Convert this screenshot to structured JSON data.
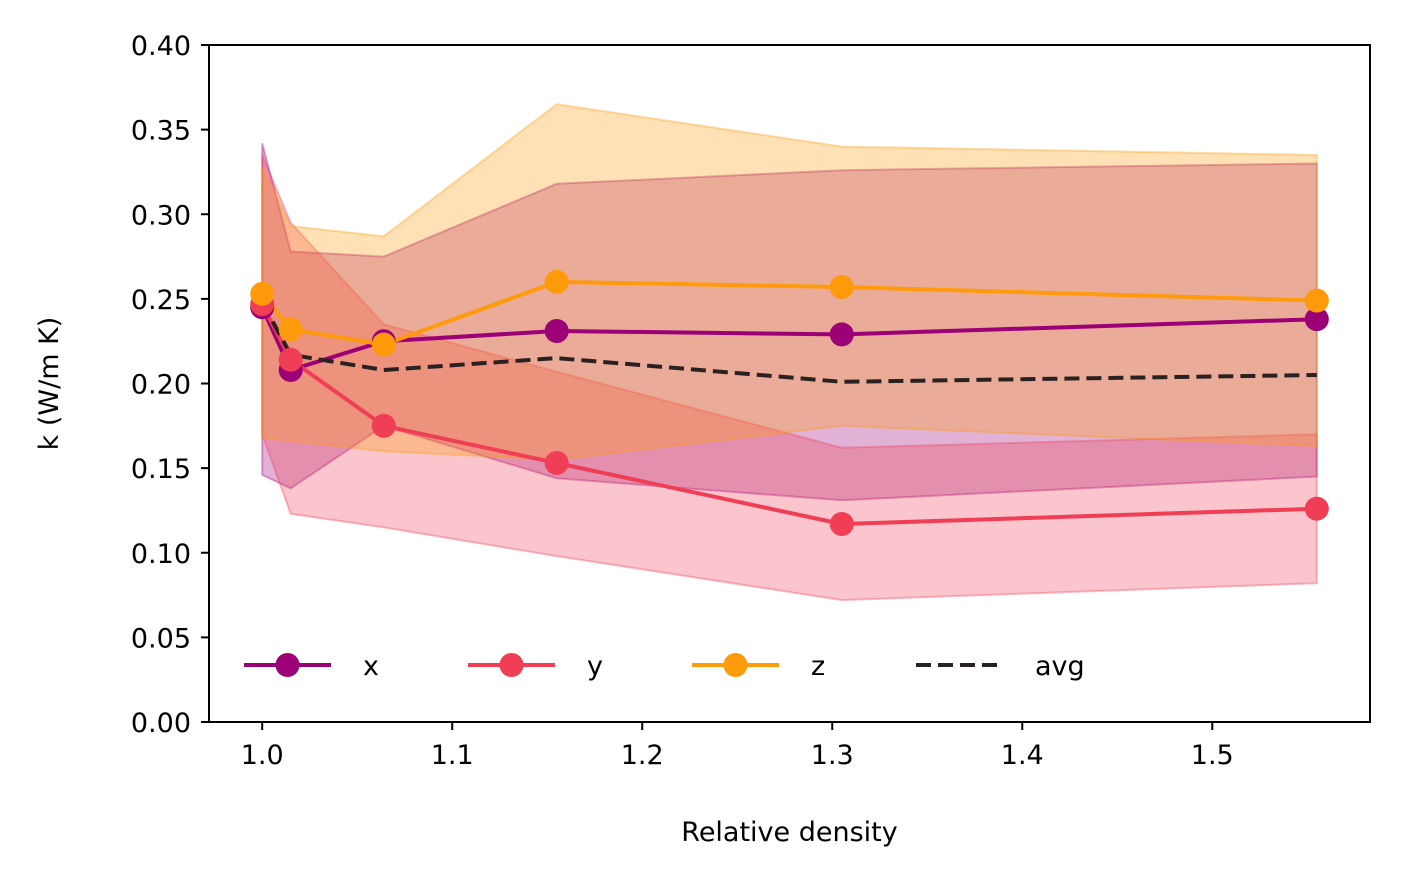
{
  "chart_data": {
    "type": "line",
    "xlabel": "Relative density",
    "ylabel": "k (W/m K)",
    "xlim": [
      0.972,
      1.583
    ],
    "ylim": [
      0.0,
      0.4
    ],
    "xticks": [
      1.0,
      1.1,
      1.2,
      1.3,
      1.4,
      1.5
    ],
    "xtick_labels": [
      "1.0",
      "1.1",
      "1.2",
      "1.3",
      "1.4",
      "1.5"
    ],
    "yticks": [
      0.0,
      0.05,
      0.1,
      0.15,
      0.2,
      0.25,
      0.3,
      0.35,
      0.4
    ],
    "ytick_labels": [
      "0.00",
      "0.05",
      "0.10",
      "0.15",
      "0.20",
      "0.25",
      "0.30",
      "0.35",
      "0.40"
    ],
    "grid": false,
    "legend": {
      "placement": "lower-left",
      "columns": 4
    },
    "x": [
      1.0,
      1.015,
      1.064,
      1.155,
      1.305,
      1.555
    ],
    "series": [
      {
        "name": "x",
        "color": "#9b0077",
        "marker": "circle",
        "linestyle": "solid",
        "values": [
          0.245,
          0.208,
          0.225,
          0.231,
          0.229,
          0.238
        ],
        "band": {
          "upper": [
            0.342,
            0.278,
            0.275,
            0.318,
            0.326,
            0.33
          ],
          "lower": [
            0.146,
            0.138,
            0.175,
            0.144,
            0.131,
            0.145
          ]
        }
      },
      {
        "name": "y",
        "color": "#ef3e55",
        "marker": "circle",
        "linestyle": "solid",
        "values": [
          0.247,
          0.214,
          0.175,
          0.153,
          0.117,
          0.126
        ],
        "band": {
          "upper": [
            0.335,
            0.295,
            0.235,
            0.207,
            0.162,
            0.17
          ],
          "lower": [
            0.17,
            0.123,
            0.115,
            0.098,
            0.072,
            0.082
          ]
        }
      },
      {
        "name": "z",
        "color": "#ff9a0a",
        "marker": "circle",
        "linestyle": "solid",
        "values": [
          0.253,
          0.232,
          0.223,
          0.26,
          0.257,
          0.249
        ],
        "band": {
          "upper": [
            0.328,
            0.293,
            0.287,
            0.365,
            0.34,
            0.335
          ],
          "lower": [
            0.168,
            0.166,
            0.16,
            0.155,
            0.175,
            0.163
          ]
        }
      },
      {
        "name": "avg",
        "color": "#2a2220",
        "marker": "none",
        "linestyle": "dashed",
        "values": [
          0.248,
          0.217,
          0.208,
          0.215,
          0.201,
          0.205
        ]
      }
    ]
  }
}
